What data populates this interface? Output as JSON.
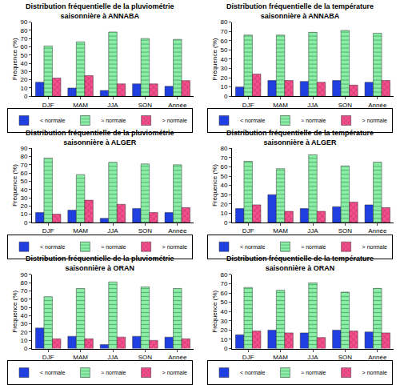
{
  "chart_data": [
    {
      "type": "bar",
      "title": "Distribution fréquentielle de la pluviométrie\nsaisonnière à ANNABA",
      "y_label": "Fréquence (%)",
      "categories": [
        "DJF",
        "MAM",
        "JJA",
        "SON",
        "Année"
      ],
      "series": [
        {
          "name": "< normale",
          "color": "#1f3fe0",
          "values": [
            17,
            10,
            7,
            15,
            12
          ]
        },
        {
          "name": "≈ normale",
          "color": "#8ef0a8",
          "values": [
            61,
            66,
            78,
            70,
            69
          ]
        },
        {
          "name": "> normale",
          "color": "#f0508c",
          "values": [
            22,
            25,
            15,
            15,
            19
          ]
        }
      ],
      "ylim": [
        0,
        90
      ],
      "yticks": [
        0,
        10,
        20,
        30,
        40,
        50,
        60,
        70,
        80,
        90
      ],
      "grid": false,
      "legend": "bottom"
    },
    {
      "type": "bar",
      "title": "Distribution fréquentielle de la température\nsaisonnière à ANNABA",
      "y_label": "Fréquence (%)",
      "categories": [
        "DJF",
        "MAM",
        "JJA",
        "SON",
        "Année"
      ],
      "series": [
        {
          "name": "< normale",
          "color": "#1f3fe0",
          "values": [
            10,
            17,
            16,
            17,
            15
          ]
        },
        {
          "name": "≈ normale",
          "color": "#8ef0a8",
          "values": [
            66,
            66,
            69,
            71,
            68
          ]
        },
        {
          "name": "> normale",
          "color": "#f0508c",
          "values": [
            24,
            17,
            15,
            12,
            17
          ]
        }
      ],
      "ylim": [
        0,
        80
      ],
      "yticks": [
        0,
        10,
        20,
        30,
        40,
        50,
        60,
        70,
        80
      ],
      "grid": false,
      "legend": "bottom"
    },
    {
      "type": "bar",
      "title": "Distribution fréquentielle de la pluviométrie\nsaisonnière à ALGER",
      "y_label": "Fréquence (%)",
      "categories": [
        "DJF",
        "MAM",
        "JJA",
        "SON",
        "Année"
      ],
      "series": [
        {
          "name": "< normale",
          "color": "#1f3fe0",
          "values": [
            12,
            15,
            5,
            17,
            12
          ]
        },
        {
          "name": "≈ normale",
          "color": "#8ef0a8",
          "values": [
            78,
            58,
            73,
            71,
            70
          ]
        },
        {
          "name": "> normale",
          "color": "#f0508c",
          "values": [
            10,
            27,
            22,
            12,
            18
          ]
        }
      ],
      "ylim": [
        0,
        90
      ],
      "yticks": [
        0,
        10,
        20,
        30,
        40,
        50,
        60,
        70,
        80,
        90
      ],
      "grid": false,
      "legend": "bottom"
    },
    {
      "type": "bar",
      "title": "Distribution fréquentielle de la température\nsaisonnière à ALGER",
      "y_label": "Fréquence (%)",
      "categories": [
        "DJF",
        "MAM",
        "JJA",
        "SON",
        "Année"
      ],
      "series": [
        {
          "name": "< normale",
          "color": "#1f3fe0",
          "values": [
            15,
            30,
            15,
            17,
            19
          ]
        },
        {
          "name": "≈ normale",
          "color": "#8ef0a8",
          "values": [
            66,
            58,
            73,
            61,
            65
          ]
        },
        {
          "name": "> normale",
          "color": "#f0508c",
          "values": [
            19,
            12,
            12,
            22,
            16
          ]
        }
      ],
      "ylim": [
        0,
        80
      ],
      "yticks": [
        0,
        10,
        20,
        30,
        40,
        50,
        60,
        70,
        80
      ],
      "grid": false,
      "legend": "bottom"
    },
    {
      "type": "bar",
      "title": "Distribution fréquentielle de la pluviométrie\nsaisonnière à ORAN",
      "y_label": "Fréquence (%)",
      "categories": [
        "DJF",
        "MAM",
        "JJA",
        "SON",
        "Année"
      ],
      "series": [
        {
          "name": "< normale",
          "color": "#1f3fe0",
          "values": [
            25,
            15,
            5,
            15,
            14
          ]
        },
        {
          "name": "≈ normale",
          "color": "#8ef0a8",
          "values": [
            63,
            73,
            81,
            75,
            73
          ]
        },
        {
          "name": "> normale",
          "color": "#f0508c",
          "values": [
            12,
            12,
            14,
            10,
            12
          ]
        }
      ],
      "ylim": [
        0,
        90
      ],
      "yticks": [
        0,
        10,
        20,
        30,
        40,
        50,
        60,
        70,
        80,
        90
      ],
      "grid": false,
      "legend": "bottom"
    },
    {
      "type": "bar",
      "title": "Distribution fréquentielle de la température\nsaisonnière à ORAN",
      "y_label": "Fréquence (%)",
      "categories": [
        "DJF",
        "MAM",
        "JJA",
        "SON",
        "Année"
      ],
      "series": [
        {
          "name": "< normale",
          "color": "#1f3fe0",
          "values": [
            15,
            20,
            17,
            20,
            18
          ]
        },
        {
          "name": "≈ normale",
          "color": "#8ef0a8",
          "values": [
            66,
            63,
            71,
            61,
            65
          ]
        },
        {
          "name": "> normale",
          "color": "#f0508c",
          "values": [
            19,
            17,
            12,
            19,
            17
          ]
        }
      ],
      "ylim": [
        0,
        80
      ],
      "yticks": [
        0,
        10,
        20,
        30,
        40,
        50,
        60,
        70,
        80
      ],
      "grid": false,
      "legend": "bottom"
    }
  ]
}
